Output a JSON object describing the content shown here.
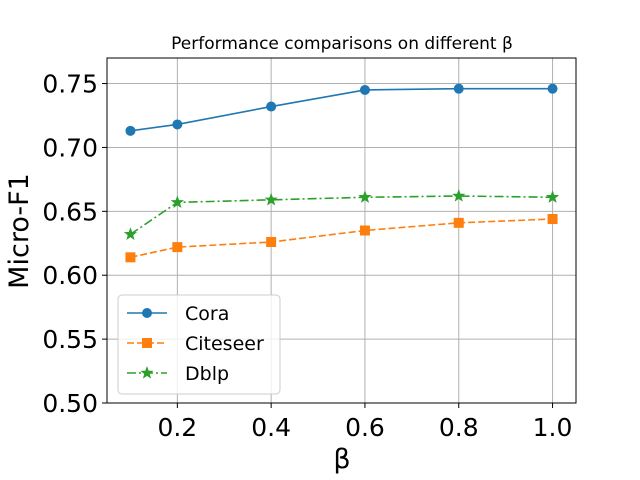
{
  "chart_data": {
    "type": "line",
    "title": "Performance comparisons on different β",
    "xlabel": "β",
    "ylabel": "Micro-F1",
    "xlim": [
      0.05,
      1.05
    ],
    "ylim": [
      0.5,
      0.77
    ],
    "grid": true,
    "legend_position": "lower-left",
    "xticks": [
      0.2,
      0.4,
      0.6,
      0.8,
      1.0
    ],
    "xtick_labels": [
      "0.2",
      "0.4",
      "0.6",
      "0.8",
      "1.0"
    ],
    "yticks": [
      0.5,
      0.55,
      0.6,
      0.65,
      0.7,
      0.75
    ],
    "ytick_labels": [
      "0.50",
      "0.55",
      "0.60",
      "0.65",
      "0.70",
      "0.75"
    ],
    "x": [
      0.1,
      0.2,
      0.4,
      0.6,
      0.8,
      1.0
    ],
    "series": [
      {
        "name": "Cora",
        "values": [
          0.713,
          0.718,
          0.732,
          0.745,
          0.746,
          0.746
        ],
        "color": "#1f77b4",
        "marker": "circle",
        "dash": "solid"
      },
      {
        "name": "Citeseer",
        "values": [
          0.614,
          0.622,
          0.626,
          0.635,
          0.641,
          0.644
        ],
        "color": "#ff7f0e",
        "marker": "square",
        "dash": "dashed"
      },
      {
        "name": "Dblp",
        "values": [
          0.632,
          0.657,
          0.659,
          0.661,
          0.662,
          0.661
        ],
        "color": "#2ca02c",
        "marker": "star",
        "dash": "dashdot"
      }
    ]
  }
}
